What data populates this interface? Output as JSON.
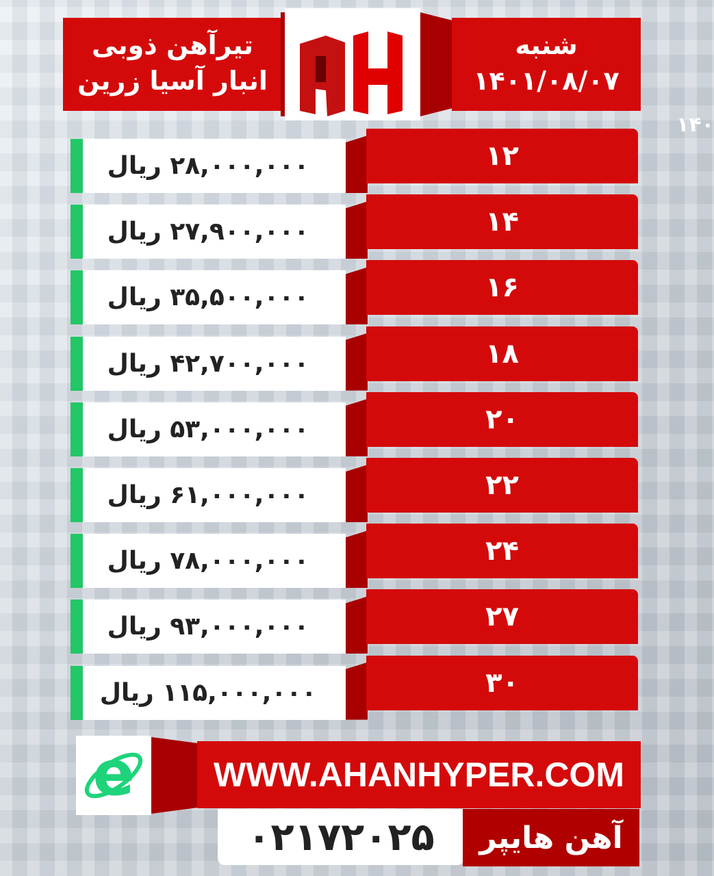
{
  "header": {
    "title_line1": "تیرآهن ذوبی",
    "title_line2": "انبار آسیا زرین",
    "day": "شنبه",
    "date": "۱۴۰۱/۰۸/۰۷",
    "logo_text": "AH",
    "background_fragment": "۱۴۰"
  },
  "colors": {
    "accent_red": "#d40a0a",
    "dark_red": "#a80000",
    "green": "#22c766"
  },
  "rows": [
    {
      "size": "۱۲",
      "price": "۲۸,۰۰۰,۰۰۰ ریال"
    },
    {
      "size": "۱۴",
      "price": "۲۷,۹۰۰,۰۰۰ ریال"
    },
    {
      "size": "۱۶",
      "price": "۳۵,۵۰۰,۰۰۰ ریال"
    },
    {
      "size": "۱۸",
      "price": "۴۲,۷۰۰,۰۰۰ ریال"
    },
    {
      "size": "۲۰",
      "price": "۵۳,۰۰۰,۰۰۰ ریال"
    },
    {
      "size": "۲۲",
      "price": "۶۱,۰۰۰,۰۰۰ ریال"
    },
    {
      "size": "۲۴",
      "price": "۷۸,۰۰۰,۰۰۰ ریال"
    },
    {
      "size": "۲۷",
      "price": "۹۳,۰۰۰,۰۰۰ ریال"
    },
    {
      "size": "۳۰",
      "price": "۱۱۵,۰۰۰,۰۰۰ ریال"
    }
  ],
  "footer": {
    "website": "WWW.AHANHYPER.COM",
    "phone": "۰۲۱۷۲۰۲۵",
    "brand": "آهن هایپر",
    "web_icon": "internet-explorer-e-icon"
  }
}
